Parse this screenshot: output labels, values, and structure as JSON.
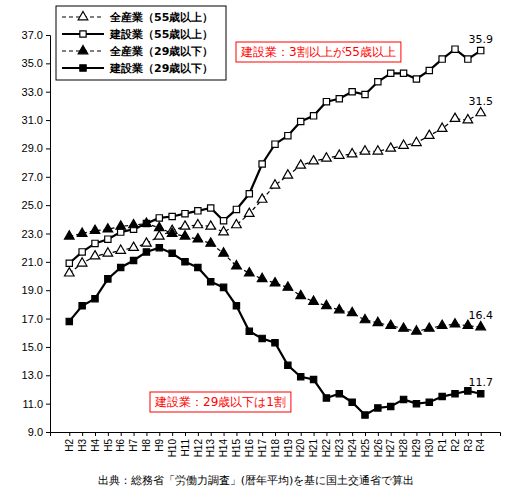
{
  "chart_data": {
    "type": "line",
    "categories": [
      "H2",
      "H3",
      "H4",
      "H5",
      "H6",
      "H7",
      "H8",
      "H9",
      "H10",
      "H11",
      "H12",
      "H13",
      "H14",
      "H15",
      "H16",
      "H17",
      "H18",
      "H19",
      "H20",
      "H21",
      "H22",
      "H23",
      "H24",
      "H25",
      "H26",
      "H27",
      "H28",
      "H29",
      "H30",
      "R1",
      "R2",
      "R3",
      "R4"
    ],
    "series": [
      {
        "name": "全産業（55歳以上）",
        "color": "#000000",
        "marker": "triangle-open",
        "line_style": "dashed",
        "values": [
          20.2,
          20.9,
          21.4,
          21.6,
          21.8,
          22.0,
          22.3,
          22.8,
          23.2,
          23.5,
          23.6,
          23.5,
          23.1,
          23.6,
          24.4,
          25.4,
          26.4,
          27.1,
          27.8,
          28.1,
          28.3,
          28.5,
          28.6,
          28.8,
          28.8,
          29.0,
          29.2,
          29.4,
          29.9,
          30.4,
          31.1,
          31.0,
          31.5
        ],
        "value_labels": [
          null,
          null,
          null,
          null,
          null,
          null,
          null,
          null,
          null,
          null,
          null,
          null,
          null,
          null,
          null,
          null,
          null,
          null,
          null,
          null,
          null,
          null,
          null,
          null,
          null,
          null,
          null,
          null,
          null,
          null,
          null,
          null,
          "31.5"
        ]
      },
      {
        "name": "建設業（55歳以上）",
        "color": "#000000",
        "marker": "square-open",
        "line_style": "solid",
        "values": [
          20.9,
          21.7,
          22.3,
          22.6,
          23.1,
          23.3,
          23.7,
          24.1,
          24.2,
          24.4,
          24.6,
          24.8,
          23.9,
          24.7,
          25.8,
          27.9,
          29.3,
          29.9,
          30.9,
          31.3,
          32.3,
          32.5,
          33.0,
          32.8,
          33.7,
          34.3,
          34.3,
          33.9,
          34.5,
          35.3,
          36.0,
          35.3,
          35.9
        ],
        "value_labels": [
          null,
          null,
          null,
          null,
          null,
          null,
          null,
          null,
          null,
          null,
          null,
          null,
          null,
          null,
          null,
          null,
          null,
          null,
          null,
          null,
          null,
          null,
          null,
          null,
          null,
          null,
          null,
          null,
          null,
          null,
          null,
          null,
          "35.9"
        ]
      },
      {
        "name": "全産業（29歳以下）",
        "color": "#000000",
        "marker": "triangle",
        "line_style": "dashed",
        "values": [
          22.8,
          23.0,
          23.2,
          23.3,
          23.5,
          23.6,
          23.7,
          23.4,
          23.0,
          22.8,
          22.6,
          22.3,
          21.6,
          20.7,
          20.2,
          19.8,
          19.5,
          19.2,
          18.6,
          18.2,
          17.9,
          17.6,
          17.4,
          16.9,
          16.7,
          16.5,
          16.3,
          16.1,
          16.3,
          16.5,
          16.6,
          16.5,
          16.4
        ],
        "value_labels": [
          null,
          null,
          null,
          null,
          null,
          null,
          null,
          null,
          null,
          null,
          null,
          null,
          null,
          null,
          null,
          null,
          null,
          null,
          null,
          null,
          null,
          null,
          null,
          null,
          null,
          null,
          null,
          null,
          null,
          null,
          null,
          null,
          "16.4"
        ]
      },
      {
        "name": "建設業（29歳以下）",
        "color": "#000000",
        "marker": "square",
        "line_style": "solid",
        "values": [
          16.8,
          17.9,
          18.4,
          19.8,
          20.6,
          21.1,
          21.7,
          22.0,
          21.6,
          21.0,
          20.6,
          19.6,
          19.2,
          17.9,
          16.1,
          15.6,
          15.3,
          13.7,
          12.9,
          12.7,
          11.4,
          11.7,
          11.1,
          10.2,
          10.7,
          10.8,
          11.3,
          11.0,
          11.1,
          11.5,
          11.7,
          11.9,
          11.7
        ],
        "value_labels": [
          null,
          null,
          null,
          null,
          null,
          null,
          null,
          null,
          null,
          null,
          null,
          null,
          null,
          null,
          null,
          null,
          null,
          null,
          null,
          null,
          null,
          null,
          null,
          null,
          null,
          null,
          null,
          null,
          null,
          null,
          null,
          null,
          "11.7"
        ]
      }
    ],
    "ylim": [
      9,
      37
    ],
    "yticks": [
      {
        "value": 9,
        "label": "9.0"
      },
      {
        "value": 11,
        "label": "11.0"
      },
      {
        "value": 13,
        "label": "13.0"
      },
      {
        "value": 15,
        "label": "15.0"
      },
      {
        "value": 17,
        "label": "17.0"
      },
      {
        "value": 19,
        "label": "19.0"
      },
      {
        "value": 21,
        "label": "21.0"
      },
      {
        "value": 23,
        "label": "23.0"
      },
      {
        "value": 25,
        "label": "25.0"
      },
      {
        "value": 27,
        "label": "27.0"
      },
      {
        "value": 29,
        "label": "29.0"
      },
      {
        "value": 31,
        "label": "31.0"
      },
      {
        "value": 33,
        "label": "33.0"
      },
      {
        "value": 35,
        "label": "35.0"
      },
      {
        "value": 37,
        "label": "37.0"
      }
    ],
    "grid": false,
    "legend": "top-left",
    "annotations": [
      {
        "text": "建設業：3割以上が55歳以上",
        "color": "#ff0000"
      },
      {
        "text": "建設業：29歳以下は1割",
        "color": "#ff0000"
      }
    ],
    "source": "出典：総務省「労働力調査」(暦年平均)を基に国土交通省で算出"
  }
}
